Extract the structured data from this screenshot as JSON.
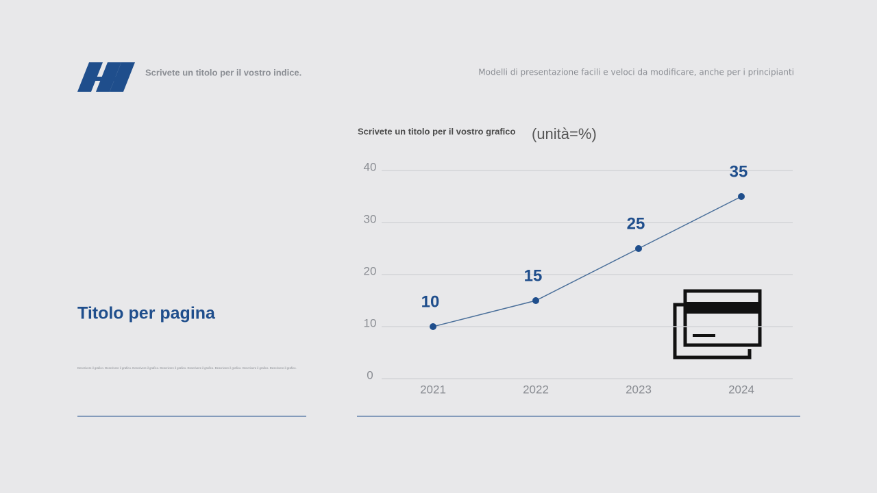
{
  "header": {
    "index_title": "Scrivete un titolo per il vostro indice.",
    "tagline": "Modelli di presentazione facili e veloci da modificare, anche per i principianti"
  },
  "page_title": "Titolo per pagina",
  "description": "Descrivere il grafico. Descrivere il grafico. Descrivere il grafico. Descrivere il grafico. Descrivere il grafico. Descrivere il grafico. Descrivere il grafico. Descrivere il grafico.",
  "chart_data": {
    "type": "line",
    "title": "Scrivete un titolo per il vostro grafico",
    "subtitle": "(unità=%)",
    "categories": [
      "2021",
      "2022",
      "2023",
      "2024"
    ],
    "values": [
      10,
      15,
      25,
      35
    ],
    "color": "#1f4e8c",
    "line_color": "#4a6f9a",
    "ylim": [
      0,
      40
    ],
    "yticks": [
      0,
      10,
      20,
      30,
      40
    ],
    "grid": true
  }
}
